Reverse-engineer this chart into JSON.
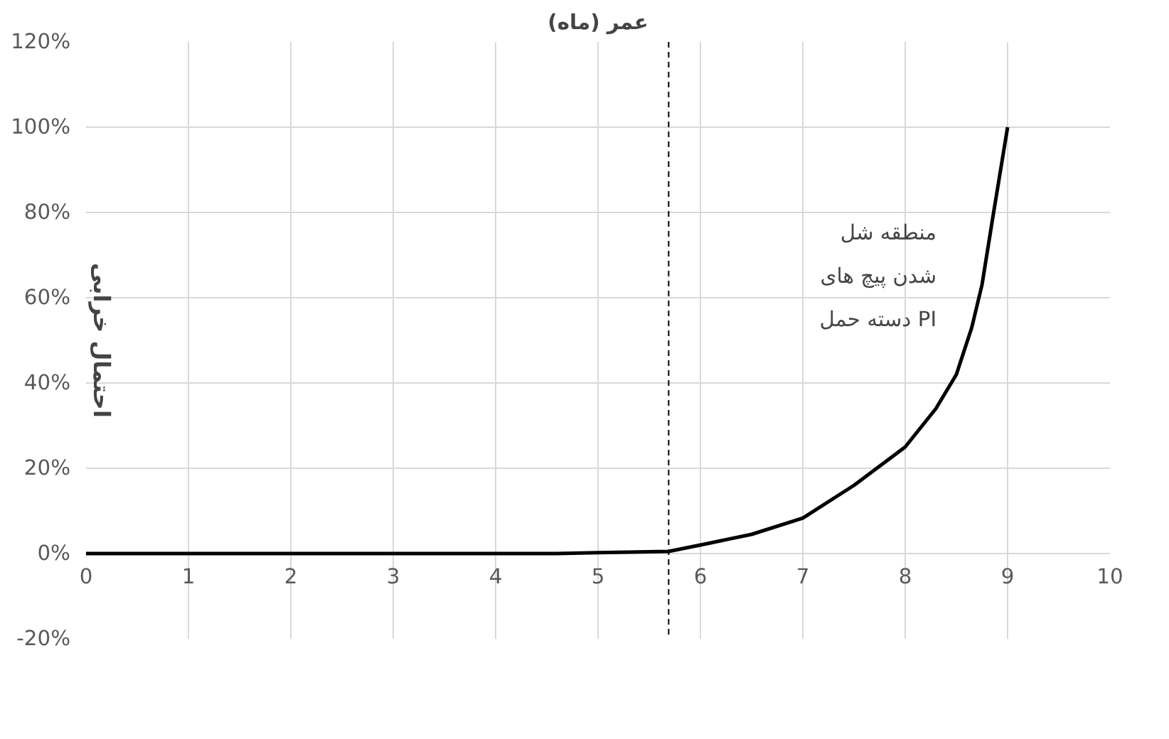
{
  "chart_data": {
    "type": "line",
    "xlabel": "عمر (ماه)",
    "ylabel": "احتمال خرابی",
    "x": [
      0,
      1,
      2,
      3,
      4,
      4.6,
      5,
      5.69,
      6,
      6.5,
      7,
      7.5,
      8,
      8.3,
      8.5,
      8.65,
      8.75,
      8.85,
      9
    ],
    "series": [
      {
        "color": "#000000",
        "values": [
          0,
          0,
          0,
          0,
          0,
          0,
          0.2,
          0.5,
          2,
          4.5,
          8.3,
          16,
          25,
          34,
          42,
          53,
          63,
          78,
          100
        ]
      }
    ],
    "xlim": [
      0,
      10
    ],
    "xticks": [
      0,
      1,
      2,
      3,
      4,
      5,
      6,
      7,
      8,
      9,
      10
    ],
    "ylim": [
      -20,
      120
    ],
    "yticks": [
      {
        "value": -20,
        "label": "-20%"
      },
      {
        "value": 0,
        "label": "0%"
      },
      {
        "value": 20,
        "label": "20%"
      },
      {
        "value": 40,
        "label": "40%"
      },
      {
        "value": 60,
        "label": "60%"
      },
      {
        "value": 80,
        "label": "80%"
      },
      {
        "value": 100,
        "label": "100%"
      },
      {
        "value": 120,
        "label": "120%"
      }
    ],
    "grid": true,
    "marker": "none",
    "line_style": "solid",
    "ref_lines": [
      {
        "axis": "x",
        "value": 5.69,
        "line_style": "dashed",
        "color": "#000000"
      }
    ],
    "annotations": [
      "منطقه شل\nشدن پیچ های\nدسته حمل PI"
    ]
  }
}
